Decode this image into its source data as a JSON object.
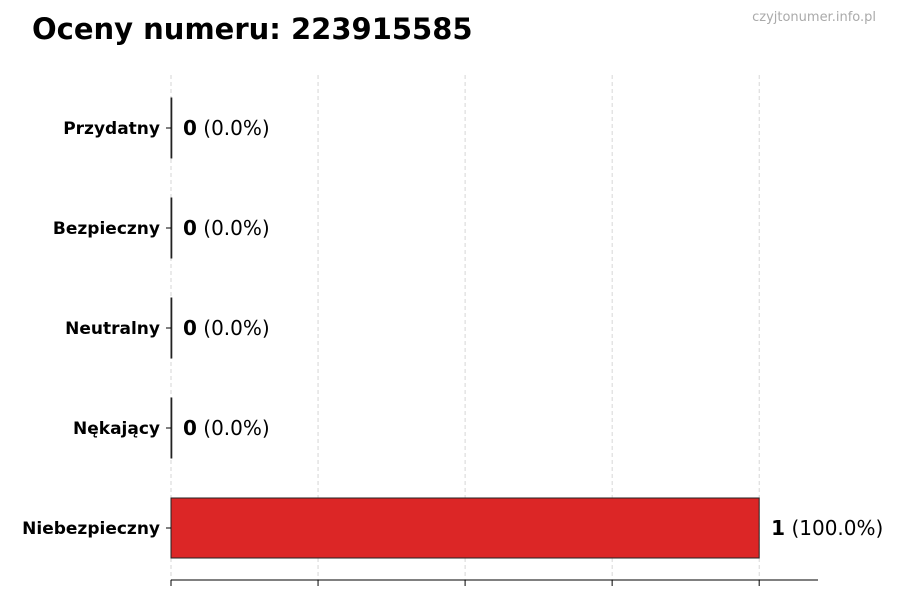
{
  "header": {
    "title": "Oceny numeru: 223915585",
    "watermark": "czyjtonumer.info.pl"
  },
  "chart_data": {
    "type": "bar",
    "orientation": "horizontal",
    "categories": [
      "Przydatny",
      "Bezpieczny",
      "Neutralny",
      "Nękający",
      "Niebezpieczny"
    ],
    "values": [
      0,
      0,
      0,
      0,
      1
    ],
    "data_labels": [
      {
        "count": "0",
        "pct": "(0.0%)"
      },
      {
        "count": "0",
        "pct": "(0.0%)"
      },
      {
        "count": "0",
        "pct": "(0.0%)"
      },
      {
        "count": "0",
        "pct": "(0.0%)"
      },
      {
        "count": "1",
        "pct": "(100.0%)"
      }
    ],
    "bar_colors": [
      "#dc2626",
      "#dc2626",
      "#dc2626",
      "#dc2626",
      "#dc2626"
    ],
    "xlim": [
      0,
      1.1
    ],
    "xticks": [
      0,
      0.25,
      0.5,
      0.75,
      1.0
    ],
    "xtick_labels_shown": false,
    "grid": "x dashed",
    "title": "Oceny numeru: 223915585",
    "xlabel": "",
    "ylabel": ""
  }
}
